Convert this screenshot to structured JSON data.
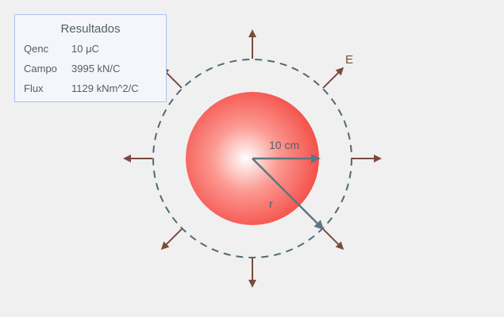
{
  "scene": {
    "labels": {
      "field": "E",
      "radius_sphere": "10 cm",
      "radius_gauss": "r"
    },
    "colors": {
      "background": "#f0f0f0",
      "sphere_edge": "#f4504a",
      "sphere_center": "#ffffff",
      "field_arrow": "#7b4a3d",
      "gauss_surface": "#4f6a74",
      "radius_line": "#5d7682"
    },
    "field_arrow_count": 8
  },
  "results": {
    "title": "Resultados",
    "rows": [
      {
        "label": "Qenc",
        "value": "10 μC"
      },
      {
        "label": "Campo",
        "value": "3995 kN/C"
      },
      {
        "label": "Flux",
        "value": "1129 kNm^2/C"
      }
    ]
  }
}
